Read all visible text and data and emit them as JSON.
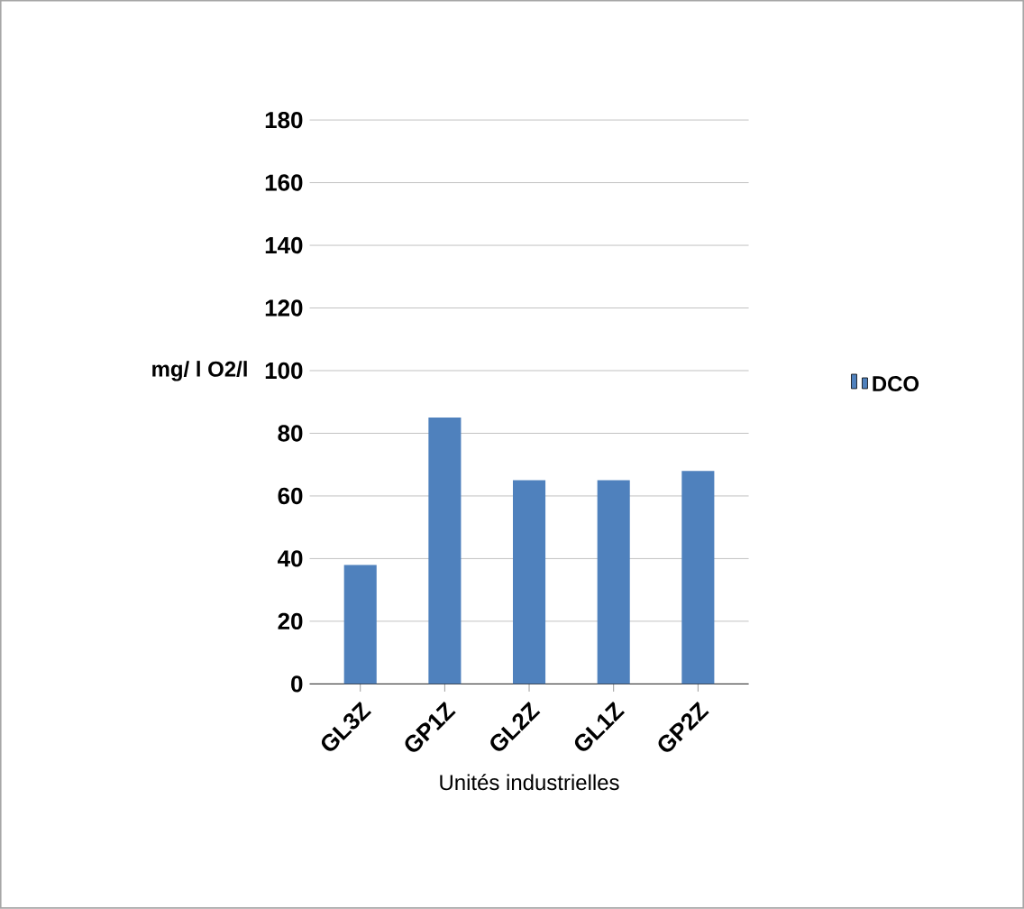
{
  "chart_data": {
    "type": "bar",
    "xlabel": "Unités industrielles",
    "ylabel": "mg/ l O2/l",
    "categories": [
      "GL3Z",
      "GP1Z",
      "GL2Z",
      "GL1Z",
      "GP2Z"
    ],
    "series": [
      {
        "name": "DCO",
        "color": "#4f81bd",
        "values": [
          38,
          85,
          65,
          65,
          68
        ]
      }
    ],
    "ylim": [
      0,
      180
    ],
    "yticks": [
      0,
      20,
      40,
      60,
      80,
      100,
      120,
      140,
      160,
      180
    ],
    "grid": "y",
    "legend": "right"
  }
}
